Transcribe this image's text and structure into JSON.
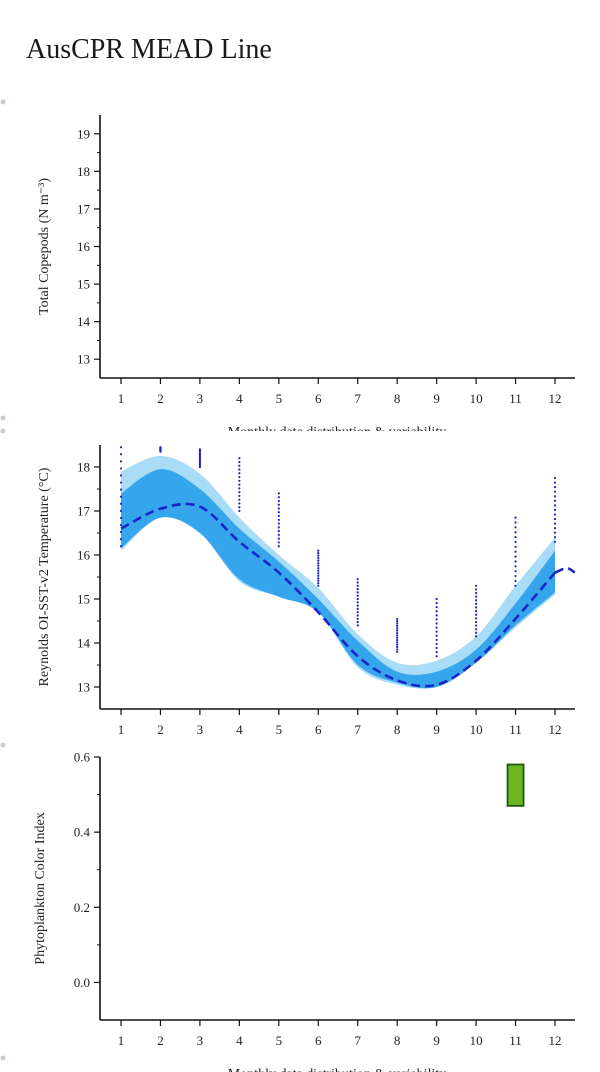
{
  "page": {
    "title": "AusCPR MEAD Line"
  },
  "chart_data": [
    {
      "type": "scatter",
      "ylabel": "Total Copepods (N m⁻³)",
      "xlabel": "Monthly data distribution & variability",
      "x": [
        1,
        2,
        3,
        4,
        5,
        6,
        7,
        8,
        9,
        10,
        11,
        12
      ],
      "yticks": [
        13,
        14,
        15,
        16,
        17,
        18,
        19
      ],
      "xlim": [
        0.5,
        12.5
      ],
      "ylim": [
        12.5,
        19.5
      ],
      "series": []
    },
    {
      "type": "area",
      "ylabel": "Reynolds OI-SST-v2 Temperature (°C)",
      "xlabel": "",
      "x": [
        1,
        2,
        3,
        4,
        5,
        6,
        7,
        8,
        9,
        10,
        11,
        12
      ],
      "yticks": [
        13,
        14,
        15,
        16,
        17,
        18
      ],
      "xlim": [
        0.5,
        12.5
      ],
      "ylim": [
        12.5,
        18.5
      ],
      "colors": {
        "outer_band": "#a9dcf7",
        "inner_band": "#35a6ec",
        "mean_line": "#1a25c9",
        "points": "#1a25c9"
      },
      "series": [
        {
          "role": "outer_band_upper",
          "values": [
            17.9,
            18.25,
            17.85,
            16.85,
            16.0,
            15.25,
            14.2,
            13.55,
            13.6,
            14.15,
            15.3,
            16.4
          ]
        },
        {
          "role": "outer_band_lower",
          "values": [
            16.1,
            16.85,
            16.5,
            15.4,
            15.05,
            14.7,
            13.45,
            13.05,
            13.0,
            13.55,
            14.35,
            15.1
          ]
        },
        {
          "role": "inner_band_upper",
          "values": [
            17.4,
            17.95,
            17.5,
            16.6,
            15.85,
            15.0,
            14.05,
            13.35,
            13.35,
            13.85,
            14.9,
            16.1
          ]
        },
        {
          "role": "inner_band_lower",
          "values": [
            16.15,
            16.85,
            16.5,
            15.45,
            15.05,
            14.7,
            13.5,
            13.1,
            13.0,
            13.55,
            14.4,
            15.15
          ]
        },
        {
          "role": "mean",
          "values": [
            16.6,
            17.05,
            17.1,
            16.3,
            15.6,
            14.7,
            13.7,
            13.15,
            13.05,
            13.6,
            14.55,
            15.6
          ]
        },
        {
          "role": "mean_tail",
          "x": [
            12.0,
            12.3,
            12.5
          ],
          "values": [
            15.6,
            15.7,
            15.6
          ]
        },
        {
          "role": "points",
          "groups": [
            {
              "x": 1,
              "min": 16.2,
              "max": 18.45
            },
            {
              "x": 2,
              "min": 18.35,
              "max": 18.45
            },
            {
              "x": 3,
              "min": 18.0,
              "max": 18.4
            },
            {
              "x": 4,
              "min": 17.0,
              "max": 18.2
            },
            {
              "x": 5,
              "min": 16.2,
              "max": 17.4
            },
            {
              "x": 6,
              "min": 15.3,
              "max": 16.1
            },
            {
              "x": 7,
              "min": 14.4,
              "max": 15.45
            },
            {
              "x": 8,
              "min": 13.8,
              "max": 14.55
            },
            {
              "x": 9,
              "min": 13.7,
              "max": 15.0
            },
            {
              "x": 10,
              "min": 14.15,
              "max": 15.3
            },
            {
              "x": 11,
              "min": 15.3,
              "max": 16.85
            },
            {
              "x": 12,
              "min": 16.3,
              "max": 17.75
            }
          ]
        }
      ]
    },
    {
      "type": "bar",
      "ylabel": "Phytoplankton Color Index",
      "xlabel": "Monthly data distribution & variability",
      "x": [
        1,
        2,
        3,
        4,
        5,
        6,
        7,
        8,
        9,
        10,
        11,
        12
      ],
      "yticks": [
        "0.0",
        "0.2",
        "0.4",
        "0.6"
      ],
      "xlim": [
        0.5,
        12.5
      ],
      "ylim": [
        -0.1,
        0.6
      ],
      "colors": {
        "box_fill": "#6db51d",
        "box_edge": "#1d5a10"
      },
      "series": [
        {
          "role": "box",
          "x": 11,
          "low": 0.47,
          "high": 0.58
        }
      ]
    }
  ]
}
